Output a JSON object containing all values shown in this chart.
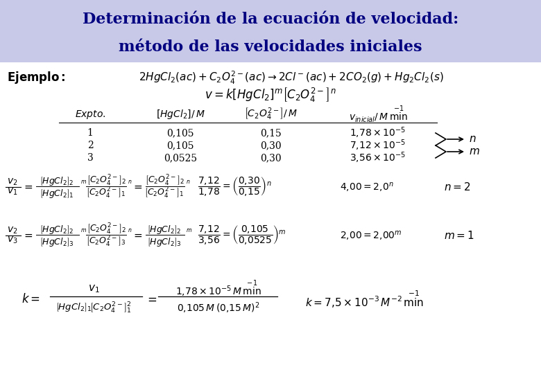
{
  "title_line1": "Determinación de la ecuación de velocidad:",
  "title_line2": "método de las velocidades iniciales",
  "title_bg_color": "#c8c8e8",
  "title_text_color": "#000080",
  "body_bg_color": "#ffffff",
  "fig_width": 7.8,
  "fig_height": 5.4,
  "dpi": 100
}
